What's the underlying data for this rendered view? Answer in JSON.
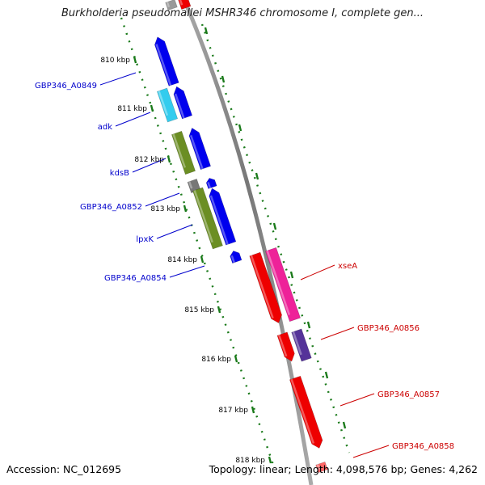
{
  "header": {
    "title": "Burkholderia pseudomallei MSHR346 chromosome I, complete gen..."
  },
  "ruler": {
    "ticks": [
      "810 kbp",
      "811 kbp",
      "812 kbp",
      "813 kbp",
      "814 kbp",
      "815 kbp",
      "816 kbp",
      "817 kbp",
      "818 kbp"
    ]
  },
  "genes_left": [
    "GBP346_A0849",
    "adk",
    "kdsB",
    "GBP346_A0852",
    "lpxK",
    "GBP346_A0854"
  ],
  "genes_right": [
    "xseA",
    "GBP346_A0856",
    "GBP346_A0857",
    "GBP346_A0858"
  ],
  "colors": {
    "left_label": "#0000cc",
    "right_label": "#cc0000",
    "blue_gene": "#0000ee",
    "cyan_gene": "#33ccee",
    "olive_gene": "#6b8e23",
    "gray_gene": "#777777",
    "red_gene": "#ee0000",
    "pink_gene": "#ee2299",
    "purple_gene": "#553399",
    "backbone": "#888888",
    "ruler_dots": "#1a7a1a"
  },
  "footer": {
    "accession": "Accession: NC_012695",
    "summary": "Topology: linear; Length: 4,098,576 bp; Genes: 4,262"
  }
}
